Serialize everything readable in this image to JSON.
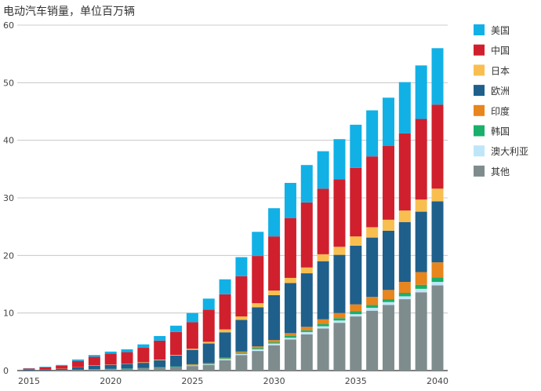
{
  "chart_data": {
    "type": "bar",
    "stacked": true,
    "title": "电动汽车销量，单位百万辆",
    "xlabel": "",
    "ylabel": "",
    "ylim": [
      0,
      60
    ],
    "yticks": [
      0,
      10,
      20,
      30,
      40,
      50,
      60
    ],
    "x": [
      2015,
      2016,
      2017,
      2018,
      2019,
      2020,
      2021,
      2022,
      2023,
      2024,
      2025,
      2026,
      2027,
      2028,
      2029,
      2030,
      2031,
      2032,
      2033,
      2034,
      2035,
      2036,
      2037,
      2038,
      2039,
      2040
    ],
    "xtick_labels": [
      "2015",
      "2020",
      "2025",
      "2030",
      "2035",
      "2040"
    ],
    "xtick_positions": [
      2015,
      2020,
      2025,
      2030,
      2035,
      2040
    ],
    "grid": true,
    "legend_position": "right",
    "series": [
      {
        "name": "其他",
        "color": "#7f8c8d",
        "values": [
          0.05,
          0.05,
          0.1,
          0.15,
          0.2,
          0.25,
          0.3,
          0.4,
          0.5,
          0.6,
          0.8,
          1.0,
          1.8,
          2.7,
          3.4,
          4.4,
          5.4,
          6.3,
          7.3,
          8.3,
          9.4,
          10.4,
          11.4,
          12.4,
          13.6,
          14.8
        ]
      },
      {
        "name": "澳大利亚",
        "color": "#bfe6f8",
        "values": [
          0,
          0,
          0,
          0,
          0,
          0,
          0,
          0,
          0,
          0,
          0.1,
          0.1,
          0.2,
          0.2,
          0.3,
          0.3,
          0.3,
          0.4,
          0.4,
          0.4,
          0.4,
          0.5,
          0.5,
          0.5,
          0.6,
          0.6
        ]
      },
      {
        "name": "韩国",
        "color": "#1aaf6a",
        "values": [
          0,
          0,
          0,
          0,
          0.05,
          0.05,
          0.05,
          0.05,
          0.1,
          0.1,
          0.1,
          0.1,
          0.15,
          0.2,
          0.2,
          0.2,
          0.3,
          0.3,
          0.4,
          0.4,
          0.5,
          0.5,
          0.5,
          0.6,
          0.7,
          0.8
        ]
      },
      {
        "name": "印度",
        "color": "#e8851d",
        "values": [
          0,
          0,
          0,
          0,
          0,
          0,
          0,
          0,
          0,
          0,
          0.1,
          0.1,
          0.1,
          0.2,
          0.3,
          0.4,
          0.5,
          0.6,
          0.8,
          0.9,
          1.2,
          1.4,
          1.6,
          1.9,
          2.2,
          2.6
        ]
      },
      {
        "name": "欧洲",
        "color": "#1f5f8b",
        "values": [
          0.1,
          0.15,
          0.2,
          0.4,
          0.6,
          0.7,
          0.8,
          0.9,
          1.2,
          1.9,
          2.5,
          3.4,
          4.4,
          5.5,
          6.8,
          7.8,
          8.7,
          9.3,
          10.1,
          10.1,
          10.2,
          10.3,
          10.3,
          10.4,
          10.5,
          10.6
        ]
      },
      {
        "name": "日本",
        "color": "#f8bf50",
        "values": [
          0.02,
          0.02,
          0.03,
          0.03,
          0.05,
          0.05,
          0.05,
          0.1,
          0.1,
          0.1,
          0.2,
          0.3,
          0.5,
          0.6,
          0.7,
          0.8,
          0.9,
          1.0,
          1.2,
          1.4,
          1.6,
          1.8,
          1.9,
          2.0,
          2.1,
          2.2
        ]
      },
      {
        "name": "中国",
        "color": "#d0202e",
        "values": [
          0.2,
          0.35,
          0.5,
          1.1,
          1.5,
          1.9,
          2.0,
          2.5,
          3.3,
          4.0,
          4.6,
          5.6,
          6.1,
          7.0,
          8.2,
          9.4,
          10.4,
          11.3,
          11.4,
          11.7,
          11.9,
          12.3,
          12.8,
          13.4,
          14.0,
          14.6
        ]
      },
      {
        "name": "美国",
        "color": "#11b1e6",
        "values": [
          0.05,
          0.1,
          0.15,
          0.25,
          0.3,
          0.35,
          0.5,
          0.6,
          0.8,
          1.1,
          1.6,
          1.9,
          2.6,
          3.3,
          4.2,
          4.9,
          6.1,
          6.5,
          6.5,
          7.0,
          7.5,
          8.0,
          8.4,
          8.9,
          9.3,
          9.8
        ]
      }
    ],
    "legend_order": [
      "美国",
      "中国",
      "日本",
      "欧洲",
      "印度",
      "韩国",
      "澳大利亚",
      "其他"
    ]
  }
}
